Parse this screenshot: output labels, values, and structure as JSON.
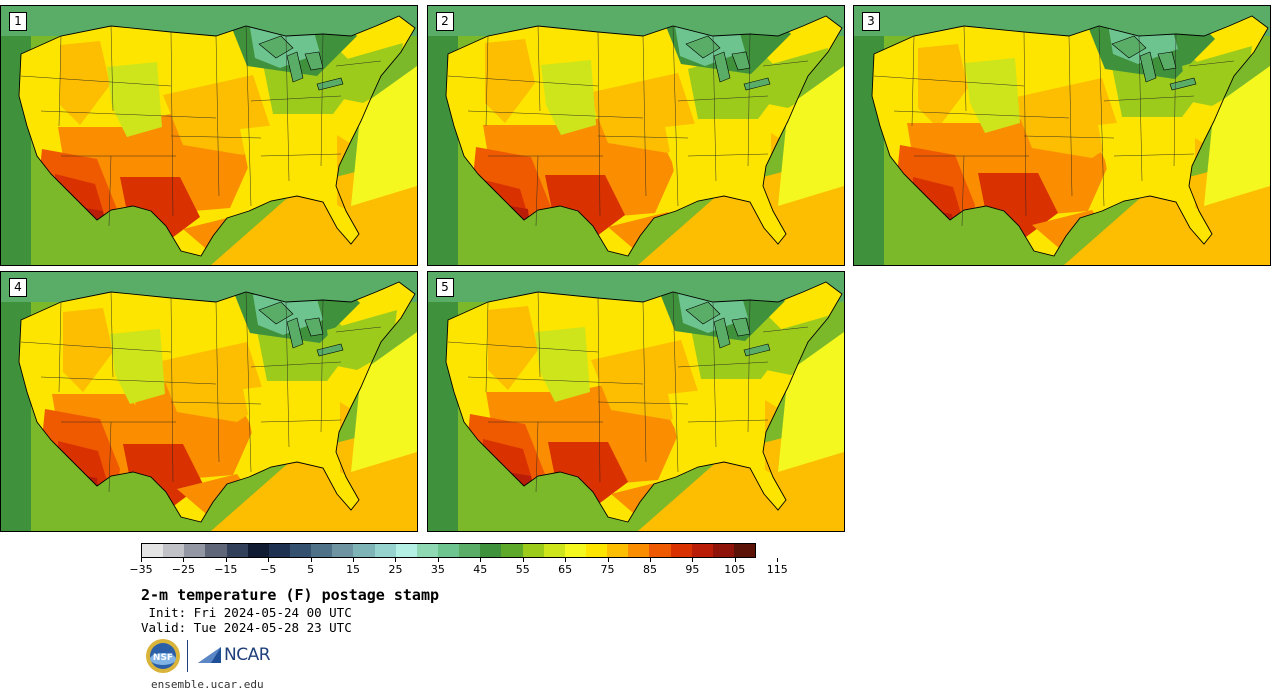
{
  "panels": [
    {
      "label": "1"
    },
    {
      "label": "2"
    },
    {
      "label": "3"
    },
    {
      "label": "4"
    },
    {
      "label": "5"
    }
  ],
  "colorbar": {
    "colors": [
      "#e4e4e4",
      "#c0c2c8",
      "#9297a3",
      "#5f6678",
      "#33405a",
      "#111c33",
      "#1f3150",
      "#345170",
      "#4f7289",
      "#6e94a2",
      "#7fb4b7",
      "#96d3cf",
      "#b4f0e4",
      "#8ed8b4",
      "#6dc48e",
      "#5aad67",
      "#3f913c",
      "#5ea82a",
      "#9dcb1c",
      "#cde51a",
      "#f4f81e",
      "#fde500",
      "#fdbd00",
      "#fb8d00",
      "#ef5a00",
      "#d93100",
      "#b91d08",
      "#8e1409",
      "#5c1307"
    ],
    "tick_labels": [
      "−35",
      "−25",
      "−15",
      "−5",
      "5",
      "15",
      "25",
      "35",
      "45",
      "55",
      "65",
      "75",
      "85",
      "95",
      "105",
      "115"
    ]
  },
  "title": "2-m temperature (F) postage stamp",
  "init": " Init: Fri 2024-05-24 00 UTC",
  "valid": "Valid: Tue 2024-05-28 23 UTC",
  "logos": {
    "nsf": "NSF",
    "ncar": "NCAR"
  },
  "website": "ensemble.ucar.edu"
}
